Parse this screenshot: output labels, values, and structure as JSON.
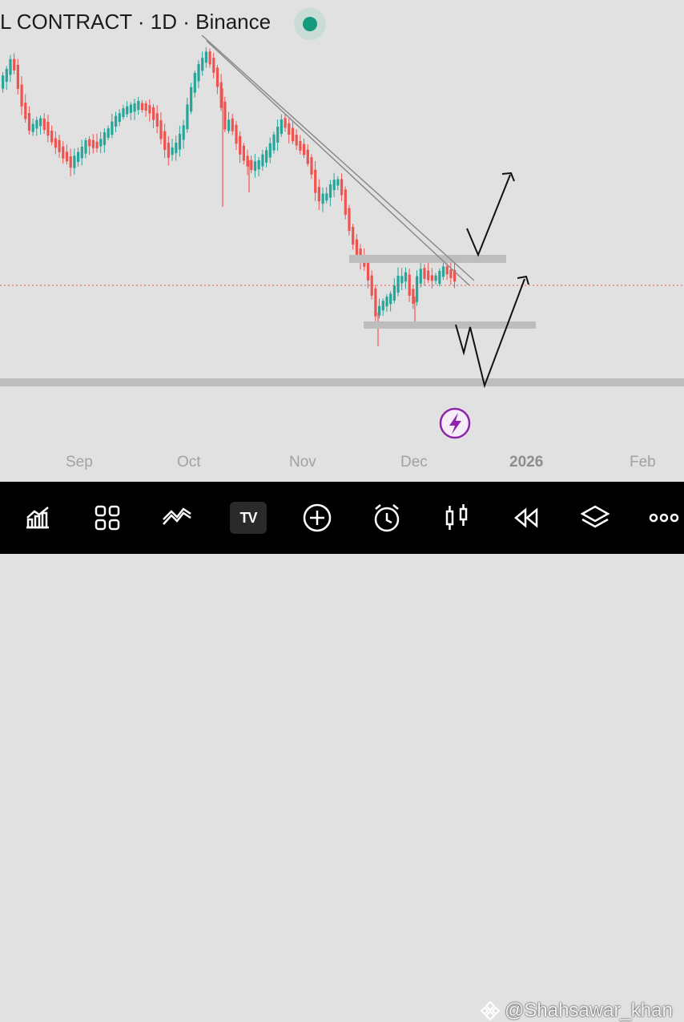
{
  "chart": {
    "title": "L CONTRACT · 1D · Binance",
    "x_labels": [
      {
        "text": "Sep",
        "strong": false
      },
      {
        "text": "Oct",
        "strong": false
      },
      {
        "text": "Nov",
        "strong": false
      },
      {
        "text": "Dec",
        "strong": false
      },
      {
        "text": "2026",
        "strong": true
      },
      {
        "text": "Feb",
        "strong": false
      }
    ],
    "colors": {
      "up": "#26a69a",
      "down": "#ef5350",
      "background": "#e1e1e1",
      "zone": "#bdbdbd",
      "trendline": "#8a8a8a",
      "price_line": "#e53935",
      "flash": "#8e24aa"
    },
    "flash_icon": "lightning-bolt-icon",
    "live_indicator": "live-status-dot"
  },
  "toolbar": {
    "items": [
      {
        "name": "chart-stats-icon"
      },
      {
        "name": "layout-grid-icon"
      },
      {
        "name": "indicators-icon"
      },
      {
        "name": "tradingview-logo-icon",
        "label": "TV"
      },
      {
        "name": "add-icon"
      },
      {
        "name": "alarm-icon"
      },
      {
        "name": "candles-icon"
      },
      {
        "name": "rewind-icon"
      },
      {
        "name": "layers-icon"
      },
      {
        "name": "more-icon"
      }
    ]
  },
  "watermark": {
    "text": "@Shahsawar_khan",
    "icon": "binance-logo-icon"
  }
}
